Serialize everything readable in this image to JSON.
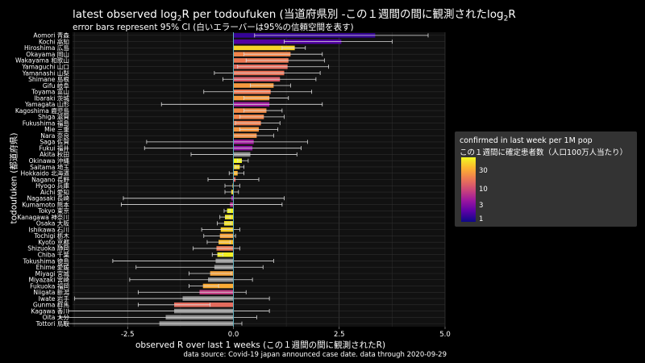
{
  "title_pre": "latest observed log",
  "title_sub": "2",
  "title_mid": "R per todoufuken (当道府県別 -この１週間の間に観測されたlog",
  "title_sub2": "2",
  "title_post": "R",
  "subtitle": "error bars represent 95% CI (白いエラーバーは95%の信頼空間を表す)",
  "xlabel": "observed R over last 1 weeks (この１週間の間に観測されたR)",
  "ylabel": "todoufuken (都道府県)",
  "caption": "data source: Covid-19 japan announced case date. data through 2020-09-29",
  "legend": {
    "title1": "confirmed in last week per 1M pop",
    "title2": "この１週間に確定患者数（人口100万人当たり）",
    "ticks": [
      "30",
      "10",
      "3",
      "1"
    ],
    "tick_values": [
      30,
      10,
      3,
      1
    ],
    "range": [
      0.7,
      50
    ]
  },
  "colors": {
    "background": "#000000",
    "panel": "#111111",
    "grid": "#3a3a3a",
    "zero": "#5fb0c0",
    "na_bar": "#8c8c8c"
  },
  "chart_data": {
    "type": "bar",
    "orientation": "horizontal",
    "xlim": [
      -3.8,
      5.0
    ],
    "xticks": [
      -2.5,
      0.0,
      2.5,
      5.0
    ],
    "xtick_labels": [
      "-2.5",
      "0.0",
      "2.5",
      "5.0"
    ],
    "grid": true,
    "legend_position": "right",
    "rows": [
      {
        "name": "Aomori 青森",
        "value": 3.35,
        "lo": 0.5,
        "hi": 4.6,
        "pop": 1.0
      },
      {
        "name": "Kochi 高知",
        "value": 2.55,
        "lo": 1.2,
        "hi": 3.75,
        "pop": 1.3
      },
      {
        "name": "Hiroshima 広島",
        "value": 1.45,
        "lo": 1.15,
        "hi": 1.7,
        "pop": 34
      },
      {
        "name": "Okayama 岡山",
        "value": 1.35,
        "lo": 0.25,
        "hi": 2.1,
        "pop": 14
      },
      {
        "name": "Wakayama 和歌山",
        "value": 1.3,
        "lo": 0.3,
        "hi": 2.15,
        "pop": 12
      },
      {
        "name": "Yamaguchi 山口",
        "value": 1.28,
        "lo": 0.1,
        "hi": 2.25,
        "pop": 10
      },
      {
        "name": "Yamanashi 山梨",
        "value": 1.2,
        "lo": -0.45,
        "hi": 2.05,
        "pop": 11
      },
      {
        "name": "Shimane 島根",
        "value": 1.1,
        "lo": -0.25,
        "hi": 1.95,
        "pop": 8
      },
      {
        "name": "Gifu 岐阜",
        "value": 0.95,
        "lo": 0.4,
        "hi": 1.35,
        "pop": 18
      },
      {
        "name": "Toyama 富山",
        "value": 0.88,
        "lo": -0.7,
        "hi": 1.85,
        "pop": 12
      },
      {
        "name": "Ibaraki 茨城",
        "value": 0.85,
        "lo": 0.25,
        "hi": 1.3,
        "pop": 18
      },
      {
        "name": "Yamagata 山形",
        "value": 0.85,
        "lo": -1.7,
        "hi": 2.1,
        "pop": 3
      },
      {
        "name": "Kagoshima 鹿児島",
        "value": 0.78,
        "lo": 0.25,
        "hi": 1.15,
        "pop": 15
      },
      {
        "name": "Shiga 滋賀",
        "value": 0.72,
        "lo": 0.15,
        "hi": 1.2,
        "pop": 14
      },
      {
        "name": "Fukushima 福島",
        "value": 0.65,
        "lo": 0.05,
        "hi": 1.1,
        "pop": 13
      },
      {
        "name": "Mie 三重",
        "value": 0.6,
        "lo": 0.15,
        "hi": 1.05,
        "pop": 17
      },
      {
        "name": "Nara 奈良",
        "value": 0.55,
        "lo": 0.0,
        "hi": 0.95,
        "pop": 16
      },
      {
        "name": "Saga 佐賀",
        "value": 0.48,
        "lo": -2.05,
        "hi": 1.75,
        "pop": 3
      },
      {
        "name": "Fukui 福井",
        "value": 0.45,
        "lo": -2.1,
        "hi": 1.6,
        "pop": 2.5
      },
      {
        "name": "Akita 秋田",
        "value": 0.4,
        "lo": -1.0,
        "hi": 1.5,
        "pop": null
      },
      {
        "name": "Okinawa 沖縄",
        "value": 0.2,
        "lo": 0.1,
        "hi": 0.35,
        "pop": 50
      },
      {
        "name": "Saitama 埼玉",
        "value": 0.15,
        "lo": 0.05,
        "hi": 0.25,
        "pop": 38
      },
      {
        "name": "Hokkaido 北海道",
        "value": 0.1,
        "lo": -0.1,
        "hi": 0.25,
        "pop": 25
      },
      {
        "name": "Nagano 長野",
        "value": 0.05,
        "lo": -0.6,
        "hi": 0.6,
        "pop": 9
      },
      {
        "name": "Hyogo 兵庫",
        "value": -0.02,
        "lo": -0.2,
        "hi": 0.15,
        "pop": 28
      },
      {
        "name": "Aichi 愛知",
        "value": -0.05,
        "lo": -0.2,
        "hi": 0.12,
        "pop": 35
      },
      {
        "name": "Nagasaki 長崎",
        "value": -0.05,
        "lo": -2.6,
        "hi": 1.2,
        "pop": 2.5
      },
      {
        "name": "Kumamoto 熊本",
        "value": -0.08,
        "lo": -2.65,
        "hi": 1.15,
        "pop": 4
      },
      {
        "name": "Tokyo 東京",
        "value": -0.15,
        "lo": -0.22,
        "hi": -0.08,
        "pop": 50
      },
      {
        "name": "Kanagawa 神奈川",
        "value": -0.2,
        "lo": -0.32,
        "hi": -0.08,
        "pop": 42
      },
      {
        "name": "Osaka 大阪",
        "value": -0.22,
        "lo": -0.38,
        "hi": -0.06,
        "pop": 40
      },
      {
        "name": "Ishikawa 石川",
        "value": -0.3,
        "lo": -0.75,
        "hi": 0.15,
        "pop": 32
      },
      {
        "name": "Tochigi 栃木",
        "value": -0.32,
        "lo": -0.7,
        "hi": 0.05,
        "pop": 20
      },
      {
        "name": "Kyoto 京都",
        "value": -0.35,
        "lo": -0.62,
        "hi": -0.08,
        "pop": 27
      },
      {
        "name": "Shizuoka 静岡",
        "value": -0.4,
        "lo": -0.95,
        "hi": 0.15,
        "pop": 12
      },
      {
        "name": "Chiba 千葉",
        "value": -0.38,
        "lo": -0.5,
        "hi": -0.25,
        "pop": 45
      },
      {
        "name": "Tokushima 徳島",
        "value": -0.42,
        "lo": -2.85,
        "hi": 0.95,
        "pop": null
      },
      {
        "name": "Ehime 愛媛",
        "value": -0.45,
        "lo": -2.3,
        "hi": 0.7,
        "pop": null
      },
      {
        "name": "Miyagi 宮城",
        "value": -0.55,
        "lo": -1.05,
        "hi": -0.05,
        "pop": 20
      },
      {
        "name": "Miyazaki 宮崎",
        "value": -0.6,
        "lo": -2.45,
        "hi": 0.45,
        "pop": null
      },
      {
        "name": "Fukuoka 福岡",
        "value": -0.72,
        "lo": -1.05,
        "hi": -0.35,
        "pop": 22
      },
      {
        "name": "Niigata 新潟",
        "value": -0.8,
        "lo": -2.25,
        "hi": 0.3,
        "pop": 5
      },
      {
        "name": "Iwate 岩手",
        "value": -1.2,
        "lo": -3.75,
        "hi": 0.85,
        "pop": null
      },
      {
        "name": "Gunma 群馬",
        "value": -1.4,
        "lo": -2.25,
        "hi": -0.55,
        "pop": 10
      },
      {
        "name": "Kagawa 香川",
        "value": -1.4,
        "lo": -3.9,
        "hi": 0.85,
        "pop": null
      },
      {
        "name": "Oita 大分",
        "value": -1.6,
        "lo": -4.1,
        "hi": 0.55,
        "pop": null
      },
      {
        "name": "Tottori 鳥取",
        "value": -1.75,
        "lo": -4.0,
        "hi": 0.2,
        "pop": null
      }
    ]
  }
}
